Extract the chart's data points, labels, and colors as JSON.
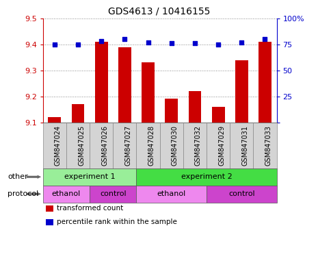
{
  "title": "GDS4613 / 10416155",
  "samples": [
    "GSM847024",
    "GSM847025",
    "GSM847026",
    "GSM847027",
    "GSM847028",
    "GSM847030",
    "GSM847032",
    "GSM847029",
    "GSM847031",
    "GSM847033"
  ],
  "bar_values": [
    9.12,
    9.17,
    9.41,
    9.39,
    9.33,
    9.19,
    9.22,
    9.16,
    9.34,
    9.41
  ],
  "percentile_values": [
    75,
    75,
    78,
    80,
    77,
    76,
    76,
    75,
    77,
    80
  ],
  "ylim_left": [
    9.1,
    9.5
  ],
  "ylim_right": [
    0,
    100
  ],
  "yticks_left": [
    9.1,
    9.2,
    9.3,
    9.4,
    9.5
  ],
  "yticks_right": [
    0,
    25,
    50,
    75,
    100
  ],
  "bar_color": "#cc0000",
  "dot_color": "#0000cc",
  "grid_color": "#888888",
  "plot_bg_color": "#ffffff",
  "experiment1_color": "#99ee99",
  "experiment2_color": "#44dd44",
  "ethanol_color": "#ee88ee",
  "control_color": "#cc44cc",
  "tick_label_color_left": "#cc0000",
  "tick_label_color_right": "#0000cc",
  "tick_label_fontsize": 8,
  "xtick_label_fontsize": 7,
  "title_fontsize": 10,
  "groups": {
    "experiment1": {
      "start": 0,
      "end": 4,
      "label": "experiment 1"
    },
    "experiment2": {
      "start": 4,
      "end": 10,
      "label": "experiment 2"
    }
  },
  "protocols": {
    "ethanol1": {
      "start": 0,
      "end": 2,
      "label": "ethanol"
    },
    "control1": {
      "start": 2,
      "end": 4,
      "label": "control"
    },
    "ethanol2": {
      "start": 4,
      "end": 7,
      "label": "ethanol"
    },
    "control2": {
      "start": 7,
      "end": 10,
      "label": "control"
    }
  },
  "legend_items": [
    {
      "color": "#cc0000",
      "label": "transformed count"
    },
    {
      "color": "#0000cc",
      "label": "percentile rank within the sample"
    }
  ]
}
